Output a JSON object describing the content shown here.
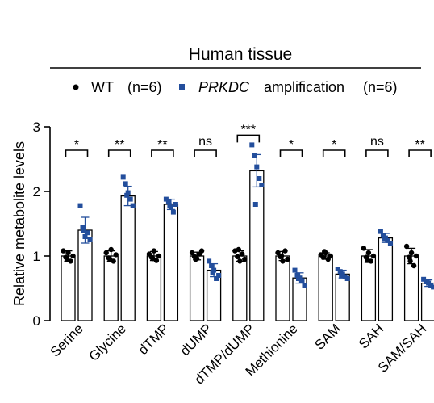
{
  "chart_data": {
    "type": "bar",
    "title": "Human tissue",
    "ylabel": "Relative metabolite levels",
    "ylim": [
      0,
      3
    ],
    "yticks": [
      "0",
      "1",
      "2",
      "3"
    ],
    "categories": [
      "Serine",
      "Glycine",
      "dTMP",
      "dUMP",
      "dTMP/dUMP",
      "Methionine",
      "SAM",
      "SAH",
      "SAM/SAH"
    ],
    "legend": {
      "wt_label": "WT",
      "wt_n": "(n=6)",
      "amp_gene": "PRKDC",
      "amp_label": "amplification",
      "amp_n": "(n=6)"
    },
    "series": [
      {
        "name": "WT",
        "color": "#000000",
        "marker": "circle",
        "means": [
          1.0,
          1.0,
          1.0,
          1.0,
          1.0,
          1.0,
          1.0,
          1.0,
          1.0
        ],
        "errors": [
          0.08,
          0.08,
          0.07,
          0.06,
          0.08,
          0.07,
          0.05,
          0.1,
          0.12
        ],
        "points": [
          [
            1.08,
            0.98,
            1.05,
            0.92,
            1.0,
            0.96
          ],
          [
            1.05,
            0.97,
            1.1,
            0.92,
            1.02,
            0.95
          ],
          [
            1.03,
            0.98,
            1.08,
            0.93,
            1.0,
            0.96
          ],
          [
            1.05,
            0.99,
            0.96,
            1.03,
            1.08,
            0.95
          ],
          [
            1.08,
            0.99,
            0.92,
            1.03,
            0.95,
            1.1
          ],
          [
            1.05,
            0.99,
            0.92,
            1.08,
            0.95,
            1.0
          ],
          [
            1.02,
            0.98,
            1.05,
            0.95,
            1.0,
            1.07
          ],
          [
            1.12,
            0.98,
            1.05,
            0.92,
            1.0,
            0.94
          ],
          [
            1.15,
            0.98,
            1.05,
            0.85,
            1.0,
            0.92
          ]
        ]
      },
      {
        "name": "PRKDC amplification",
        "color": "#234e9c",
        "marker": "square",
        "means": [
          1.4,
          1.93,
          1.8,
          0.78,
          2.32,
          0.66,
          0.72,
          1.28,
          0.58
        ],
        "errors": [
          0.2,
          0.15,
          0.08,
          0.1,
          0.25,
          0.08,
          0.06,
          0.07,
          0.05
        ],
        "points": [
          [
            1.78,
            1.45,
            1.3,
            1.36,
            1.25,
            1.4
          ],
          [
            2.22,
            2.12,
            1.98,
            1.88,
            1.78,
            1.94
          ],
          [
            1.88,
            1.85,
            1.75,
            1.68,
            1.8,
            1.78
          ],
          [
            0.92,
            0.85,
            0.78,
            0.65,
            0.7,
            0.75
          ],
          [
            2.72,
            2.55,
            2.38,
            2.2,
            2.1,
            1.8
          ],
          [
            0.78,
            0.7,
            0.66,
            0.62,
            0.55,
            0.65
          ],
          [
            0.8,
            0.76,
            0.72,
            0.68,
            0.65,
            0.7
          ],
          [
            1.38,
            1.32,
            1.28,
            1.24,
            1.2,
            1.26
          ],
          [
            0.64,
            0.6,
            0.58,
            0.55,
            0.52,
            0.6
          ]
        ]
      }
    ],
    "significance": [
      "*",
      "**",
      "**",
      "ns",
      "***",
      "*",
      "*",
      "ns",
      "**"
    ]
  }
}
